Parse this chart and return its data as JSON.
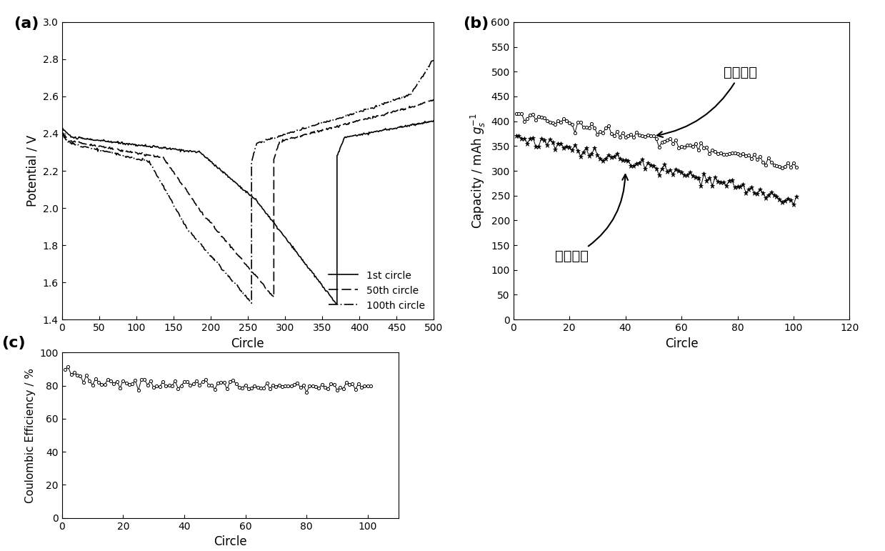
{
  "fig_width": 12.39,
  "fig_height": 7.71,
  "background_color": "#ffffff",
  "panel_a": {
    "label": "(a)",
    "xlabel": "Circle",
    "ylabel": "Potential / V",
    "xlim": [
      0,
      500
    ],
    "ylim": [
      1.4,
      3.0
    ],
    "xticks": [
      0,
      50,
      100,
      150,
      200,
      250,
      300,
      350,
      400,
      450,
      500
    ],
    "yticks": [
      1.4,
      1.6,
      1.8,
      2.0,
      2.2,
      2.4,
      2.6,
      2.8,
      3.0
    ],
    "legend_entries": [
      "1st circle",
      "50th circle",
      "100th circle"
    ]
  },
  "panel_b": {
    "label": "(b)",
    "xlabel": "Circle",
    "ylabel": "Capacity / mAh $g_s^{-1}$",
    "xlim": [
      0,
      120
    ],
    "ylim": [
      0,
      600
    ],
    "xticks": [
      0,
      20,
      40,
      60,
      80,
      100,
      120
    ],
    "yticks": [
      0,
      50,
      100,
      150,
      200,
      250,
      300,
      350,
      400,
      450,
      500,
      550,
      600
    ],
    "charge_label": "充电容量",
    "discharge_label": "放电容量",
    "charge_start": 415,
    "charge_end": 310,
    "discharge_start": 370,
    "discharge_end": 240
  },
  "panel_c": {
    "label": "(c)",
    "xlabel": "Circle",
    "ylabel": "Coulombic Efficiency / %",
    "xlim": [
      0,
      110
    ],
    "ylim": [
      0,
      100
    ],
    "xticks": [
      0,
      20,
      40,
      60,
      80,
      100
    ],
    "yticks": [
      0,
      20,
      40,
      60,
      80,
      100
    ],
    "ce_start": 90,
    "ce_end": 79
  }
}
